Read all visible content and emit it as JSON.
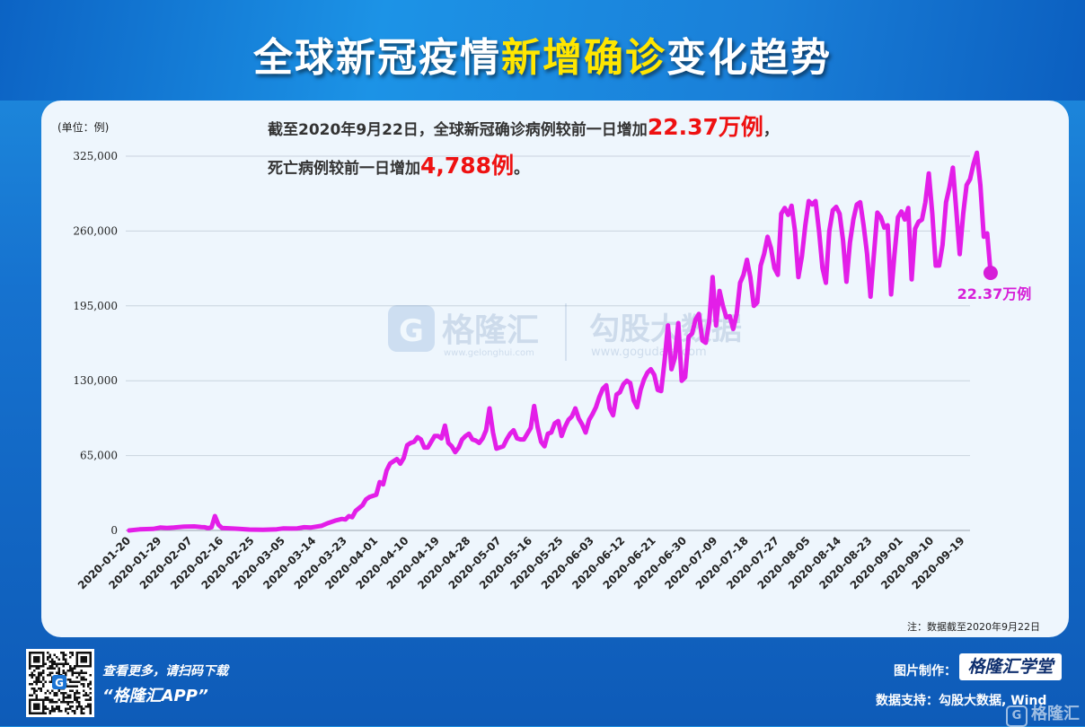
{
  "title": {
    "part1": "全球新冠疫情",
    "highlight": "新增确诊",
    "part2": "变化趋势"
  },
  "unit_label": "(单位：例)",
  "annotation": {
    "line1_prefix": "截至2020年9月22日，全球新冠确诊病例较前一日增加",
    "line1_value": "22.37万例",
    "line1_suffix": "，",
    "line2_prefix": "死亡病例较前一日增加",
    "line2_value": "4,788例",
    "line2_suffix": "。"
  },
  "end_label": "22.37万例",
  "note": "注：数据截至2020年9月22日",
  "watermark": {
    "left": "格隆汇",
    "left_sub": "www.gelonghui.com",
    "right": "勾股大数据",
    "right_sub": "www.gogudata.com"
  },
  "footer": {
    "scan_text": "查看更多，请扫码下载",
    "app_text": "“格隆汇APP”",
    "made_by_label": "图片制作：",
    "made_by_brand": "格隆汇学堂",
    "data_support": "数据支持：勾股大数据, Wind",
    "corner_brand": "格隆汇"
  },
  "colors": {
    "line": "#e31ee8",
    "highlight_red": "#ee1111",
    "title_yellow": "#ffe600",
    "end_label": "#d61ed8"
  },
  "chart_data": {
    "type": "line",
    "title": "全球新冠疫情新增确诊变化趋势",
    "ylabel": "(单位：例)",
    "ylim": [
      0,
      325000
    ],
    "yticks": [
      0,
      65000,
      130000,
      195000,
      260000,
      325000
    ],
    "ytick_labels": [
      "0",
      "65,000",
      "130,000",
      "195,000",
      "260,000",
      "325,000"
    ],
    "x_start": "2020-01-20",
    "x_end": "2020-09-22",
    "xtick_labels": [
      "2020-01-20",
      "2020-01-29",
      "2020-02-07",
      "2020-02-16",
      "2020-02-25",
      "2020-03-05",
      "2020-03-14",
      "2020-03-23",
      "2020-04-01",
      "2020-04-10",
      "2020-04-19",
      "2020-04-28",
      "2020-05-07",
      "2020-05-16",
      "2020-05-25",
      "2020-06-03",
      "2020-06-12",
      "2020-06-21",
      "2020-06-30",
      "2020-07-09",
      "2020-07-18",
      "2020-07-27",
      "2020-08-05",
      "2020-08-14",
      "2020-08-23",
      "2020-09-01",
      "2020-09-10",
      "2020-09-19"
    ],
    "grid": true,
    "series": [
      {
        "values": [
          [
            1,
            0
          ],
          [
            4,
            900
          ],
          [
            8,
            1300
          ],
          [
            10,
            2500
          ],
          [
            12,
            2200
          ],
          [
            14,
            2500
          ],
          [
            17,
            3300
          ],
          [
            20,
            3500
          ],
          [
            22,
            3000
          ],
          [
            23,
            2800
          ],
          [
            24,
            2000
          ],
          [
            25,
            2700
          ],
          [
            26,
            12500
          ],
          [
            27,
            5000
          ],
          [
            28,
            2200
          ],
          [
            30,
            1900
          ],
          [
            33,
            1300
          ],
          [
            36,
            800
          ],
          [
            40,
            600
          ],
          [
            44,
            1000
          ],
          [
            46,
            1800
          ],
          [
            48,
            1600
          ],
          [
            50,
            1800
          ],
          [
            52,
            2800
          ],
          [
            54,
            2600
          ],
          [
            57,
            4000
          ],
          [
            59,
            6500
          ],
          [
            61,
            8500
          ],
          [
            63,
            10000
          ],
          [
            64,
            9500
          ],
          [
            65,
            12500
          ],
          [
            66,
            11500
          ],
          [
            67,
            17000
          ],
          [
            69,
            22000
          ],
          [
            70,
            27000
          ],
          [
            71,
            29000
          ],
          [
            72,
            30000
          ],
          [
            73,
            31000
          ],
          [
            74,
            42000
          ],
          [
            75,
            40000
          ],
          [
            76,
            52000
          ],
          [
            77,
            58000
          ],
          [
            78,
            60000
          ],
          [
            79,
            62000
          ],
          [
            80,
            58000
          ],
          [
            81,
            63000
          ],
          [
            82,
            74000
          ],
          [
            83,
            76000
          ],
          [
            84,
            77000
          ],
          [
            85,
            81000
          ],
          [
            86,
            79000
          ],
          [
            87,
            72000
          ],
          [
            88,
            72000
          ],
          [
            89,
            77000
          ],
          [
            90,
            82000
          ],
          [
            91,
            82000
          ],
          [
            92,
            80000
          ],
          [
            93,
            91000
          ],
          [
            94,
            76000
          ],
          [
            95,
            73000
          ],
          [
            96,
            68000
          ],
          [
            97,
            72000
          ],
          [
            98,
            79000
          ],
          [
            99,
            82000
          ],
          [
            100,
            84000
          ],
          [
            101,
            79000
          ],
          [
            102,
            78000
          ],
          [
            103,
            76000
          ],
          [
            104,
            80000
          ],
          [
            105,
            87000
          ],
          [
            106,
            106000
          ],
          [
            107,
            85000
          ],
          [
            108,
            71000
          ],
          [
            110,
            73000
          ],
          [
            111,
            79000
          ],
          [
            112,
            84000
          ],
          [
            113,
            87000
          ],
          [
            114,
            80000
          ],
          [
            115,
            79000
          ],
          [
            116,
            79000
          ],
          [
            117,
            84000
          ],
          [
            118,
            89000
          ],
          [
            119,
            108000
          ],
          [
            120,
            90000
          ],
          [
            121,
            77000
          ],
          [
            122,
            73000
          ],
          [
            123,
            84000
          ],
          [
            124,
            85000
          ],
          [
            125,
            93000
          ],
          [
            126,
            95000
          ],
          [
            127,
            82000
          ],
          [
            128,
            90000
          ],
          [
            129,
            96000
          ],
          [
            130,
            99000
          ],
          [
            131,
            106000
          ],
          [
            132,
            97000
          ],
          [
            133,
            92000
          ],
          [
            134,
            85000
          ],
          [
            135,
            96000
          ],
          [
            136,
            101000
          ],
          [
            137,
            107000
          ],
          [
            138,
            116000
          ],
          [
            139,
            123000
          ],
          [
            140,
            126000
          ],
          [
            141,
            106000
          ],
          [
            142,
            100000
          ],
          [
            143,
            118000
          ],
          [
            144,
            120000
          ],
          [
            145,
            127000
          ],
          [
            146,
            130000
          ],
          [
            147,
            128000
          ],
          [
            148,
            113000
          ],
          [
            149,
            107000
          ],
          [
            150,
            122000
          ],
          [
            151,
            131000
          ],
          [
            152,
            137000
          ],
          [
            153,
            140000
          ],
          [
            154,
            135000
          ],
          [
            155,
            122000
          ],
          [
            156,
            121000
          ],
          [
            157,
            147000
          ],
          [
            158,
            178000
          ],
          [
            159,
            140000
          ],
          [
            160,
            150000
          ],
          [
            161,
            180000
          ],
          [
            162,
            130000
          ],
          [
            163,
            133000
          ],
          [
            164,
            168000
          ],
          [
            165,
            171000
          ],
          [
            166,
            183000
          ],
          [
            167,
            188000
          ],
          [
            168,
            165000
          ],
          [
            169,
            163000
          ],
          [
            170,
            181000
          ],
          [
            171,
            220000
          ],
          [
            172,
            178000
          ],
          [
            173,
            208000
          ],
          [
            174,
            195000
          ],
          [
            175,
            185000
          ],
          [
            176,
            186000
          ],
          [
            177,
            175000
          ],
          [
            178,
            188000
          ],
          [
            179,
            215000
          ],
          [
            180,
            222000
          ],
          [
            181,
            235000
          ],
          [
            182,
            220000
          ],
          [
            183,
            195000
          ],
          [
            184,
            198000
          ],
          [
            185,
            230000
          ],
          [
            186,
            240000
          ],
          [
            187,
            255000
          ],
          [
            188,
            245000
          ],
          [
            189,
            228000
          ],
          [
            190,
            222000
          ],
          [
            191,
            275000
          ],
          [
            192,
            280000
          ],
          [
            193,
            274000
          ],
          [
            194,
            282000
          ],
          [
            195,
            260000
          ],
          [
            196,
            220000
          ],
          [
            197,
            238000
          ],
          [
            198,
            265000
          ],
          [
            199,
            286000
          ],
          [
            200,
            283000
          ],
          [
            201,
            286000
          ],
          [
            202,
            260000
          ],
          [
            203,
            228000
          ],
          [
            204,
            215000
          ],
          [
            205,
            260000
          ],
          [
            206,
            278000
          ],
          [
            207,
            281000
          ],
          [
            208,
            275000
          ],
          [
            209,
            252000
          ],
          [
            210,
            216000
          ],
          [
            211,
            250000
          ],
          [
            212,
            270000
          ],
          [
            213,
            283000
          ],
          [
            214,
            285000
          ],
          [
            215,
            265000
          ],
          [
            216,
            240000
          ],
          [
            217,
            203000
          ],
          [
            218,
            240000
          ],
          [
            219,
            276000
          ],
          [
            220,
            272000
          ],
          [
            221,
            263000
          ],
          [
            222,
            265000
          ],
          [
            223,
            205000
          ],
          [
            224,
            240000
          ],
          [
            225,
            272000
          ],
          [
            226,
            277000
          ],
          [
            227,
            270000
          ],
          [
            228,
            280000
          ],
          [
            229,
            218000
          ],
          [
            230,
            262000
          ],
          [
            231,
            268000
          ],
          [
            232,
            270000
          ],
          [
            233,
            285000
          ],
          [
            234,
            310000
          ],
          [
            235,
            275000
          ],
          [
            236,
            230000
          ],
          [
            237,
            230000
          ],
          [
            238,
            248000
          ],
          [
            239,
            285000
          ],
          [
            240,
            298000
          ],
          [
            241,
            315000
          ],
          [
            242,
            278000
          ],
          [
            243,
            240000
          ],
          [
            244,
            275000
          ],
          [
            245,
            300000
          ],
          [
            246,
            305000
          ],
          [
            247,
            318000
          ],
          [
            248,
            328000
          ],
          [
            249,
            300000
          ],
          [
            250,
            255000
          ],
          [
            251,
            258000
          ],
          [
            252,
            223700
          ]
        ]
      }
    ]
  }
}
